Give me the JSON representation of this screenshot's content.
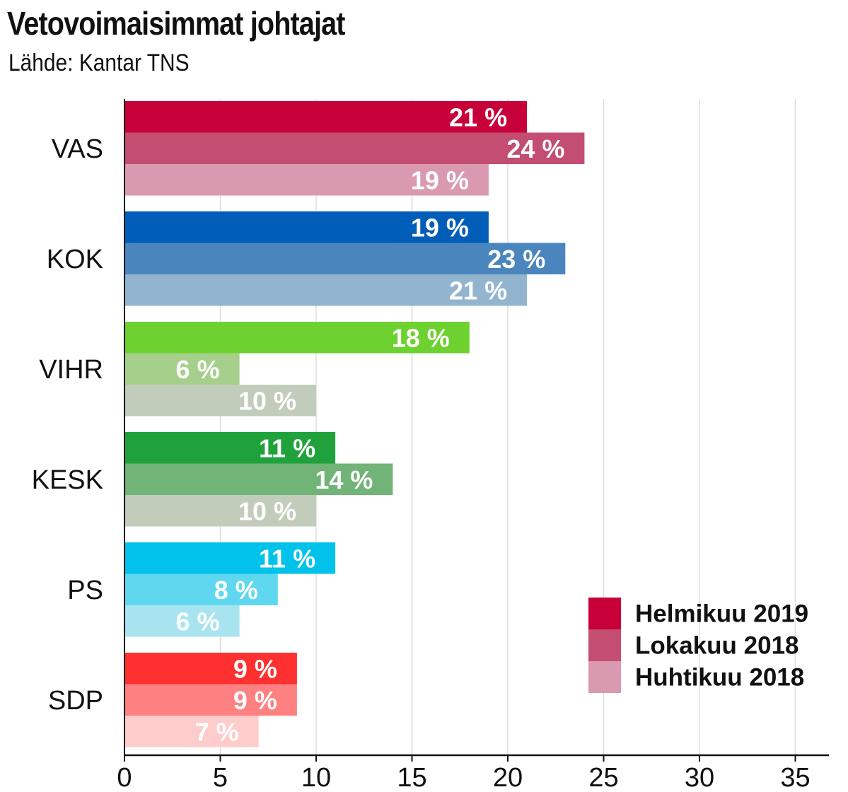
{
  "title": "Vetovoimaisimmat johtajat",
  "subtitle": "Lähde: Kantar TNS",
  "chart_data": {
    "type": "bar",
    "orientation": "horizontal",
    "title": "Vetovoimaisimmat johtajat",
    "source": "Lähde: Kantar TNS",
    "categories": [
      "VAS",
      "KOK",
      "VIHR",
      "KESK",
      "PS",
      "SDP"
    ],
    "series": [
      {
        "name": "Helmikuu 2019",
        "values": [
          21,
          19,
          18,
          11,
          11,
          9
        ]
      },
      {
        "name": "Lokakuu 2018",
        "values": [
          24,
          23,
          6,
          14,
          8,
          9
        ]
      },
      {
        "name": "Huhtikuu 2018",
        "values": [
          19,
          21,
          10,
          10,
          6,
          7
        ]
      }
    ],
    "colors": [
      [
        "#c8003a",
        "#c44d72",
        "#d99ab0"
      ],
      [
        "#005eb8",
        "#4a86bd",
        "#92b4cf"
      ],
      [
        "#6dd12f",
        "#a7cf8c",
        "#c2ccbb"
      ],
      [
        "#1fa23c",
        "#72b377",
        "#c2ccbb"
      ],
      [
        "#00c2ea",
        "#5fd8ef",
        "#a8e4ef"
      ],
      [
        "#ff3030",
        "#ff8080",
        "#ffcccc"
      ]
    ],
    "legend_colors": [
      "#c8003a",
      "#c44d72",
      "#d99ab0"
    ],
    "value_suffix": " %",
    "xlim": [
      0,
      37
    ],
    "xticks": [
      "0",
      "5",
      "10",
      "15",
      "20",
      "25",
      "30",
      "35"
    ],
    "grid": true,
    "legend_position": "bottom-right"
  }
}
